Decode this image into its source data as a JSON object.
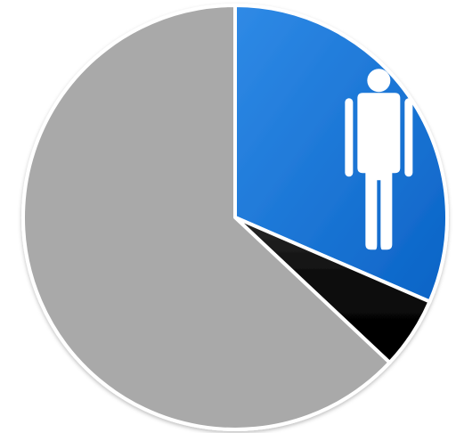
{
  "chart_data": {
    "type": "pie",
    "slices": [
      {
        "value": 31.5,
        "color": "#0b73d6",
        "icon": "male-person-icon"
      },
      {
        "value": 5.5,
        "color": "#0a0a0a"
      },
      {
        "value": 63.0,
        "color": "#a9a9a9"
      }
    ],
    "start_angle_deg": 0,
    "direction": "clockwise",
    "legend": "none",
    "background_color": "#ffffff",
    "separator_color": "#ffffff"
  }
}
